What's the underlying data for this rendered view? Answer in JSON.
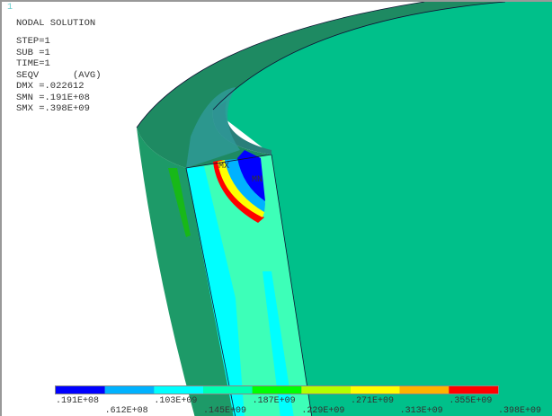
{
  "window_number": "1",
  "info": {
    "title": "NODAL SOLUTION",
    "lines": [
      "STEP=1",
      "SUB =1",
      "TIME=1",
      "SEQV      (AVG)",
      "DMX =.022612",
      "SMN =.191E+08",
      "SMX =.398E+09"
    ]
  },
  "markers": {
    "max": "MX",
    "min": "MN"
  },
  "legend": {
    "colors": [
      "#0000ff",
      "#00b2ff",
      "#00ffff",
      "#00ffb2",
      "#00ff00",
      "#b2ff00",
      "#ffff00",
      "#ffb200",
      "#ff0000"
    ],
    "labels": [
      ".191E+08",
      ".612E+08",
      ".103E+09",
      ".145E+09",
      ".187E+09",
      ".229E+09",
      ".271E+09",
      ".313E+09",
      ".355E+09",
      ".398E+09"
    ]
  }
}
